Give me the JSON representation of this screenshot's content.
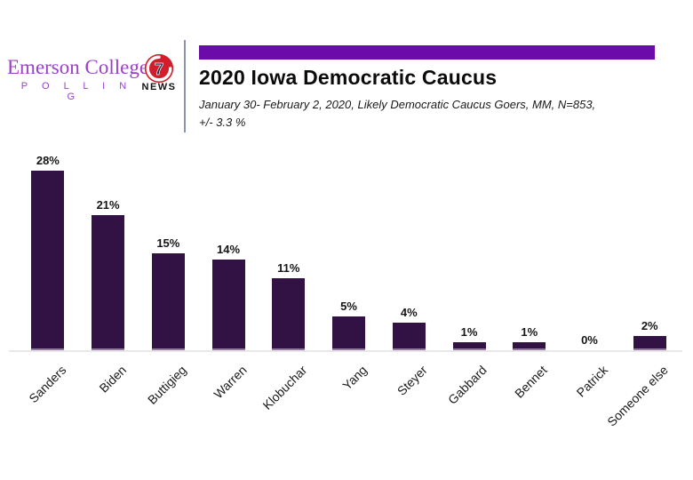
{
  "logo": {
    "name": "Emerson College",
    "subname": "P O L L I N G",
    "color": "#9c3fc9"
  },
  "news_logo": {
    "number": "7",
    "label": "NEWS",
    "circle_color": "#d21e2b"
  },
  "header": {
    "title": "2020 Iowa Democratic Caucus",
    "subtitle_line1": "January 30- February 2, 2020, Likely Democratic Caucus Goers, MM,  N=853,",
    "subtitle_line2": "+/- 3.3 %",
    "banner_color": "#6c0ba9"
  },
  "chart_data": {
    "type": "bar",
    "title": "2020 Iowa Democratic Caucus",
    "categories": [
      "Sanders",
      "Biden",
      "Buttigieg",
      "Warren",
      "Klobuchar",
      "Yang",
      "Steyer",
      "Gabbard",
      "Bennet",
      "Patrick",
      "Someone else"
    ],
    "values": [
      28,
      21,
      15,
      14,
      11,
      5,
      4,
      1,
      1,
      0,
      2
    ],
    "value_labels": [
      "28%",
      "21%",
      "15%",
      "14%",
      "11%",
      "5%",
      "4%",
      "1%",
      "1%",
      "0%",
      "2%"
    ],
    "xlabel": "",
    "ylabel": "",
    "ylim": [
      0,
      30
    ],
    "grid": false,
    "legend": false,
    "bar_color": "#321244",
    "value_label_format": "percent"
  }
}
